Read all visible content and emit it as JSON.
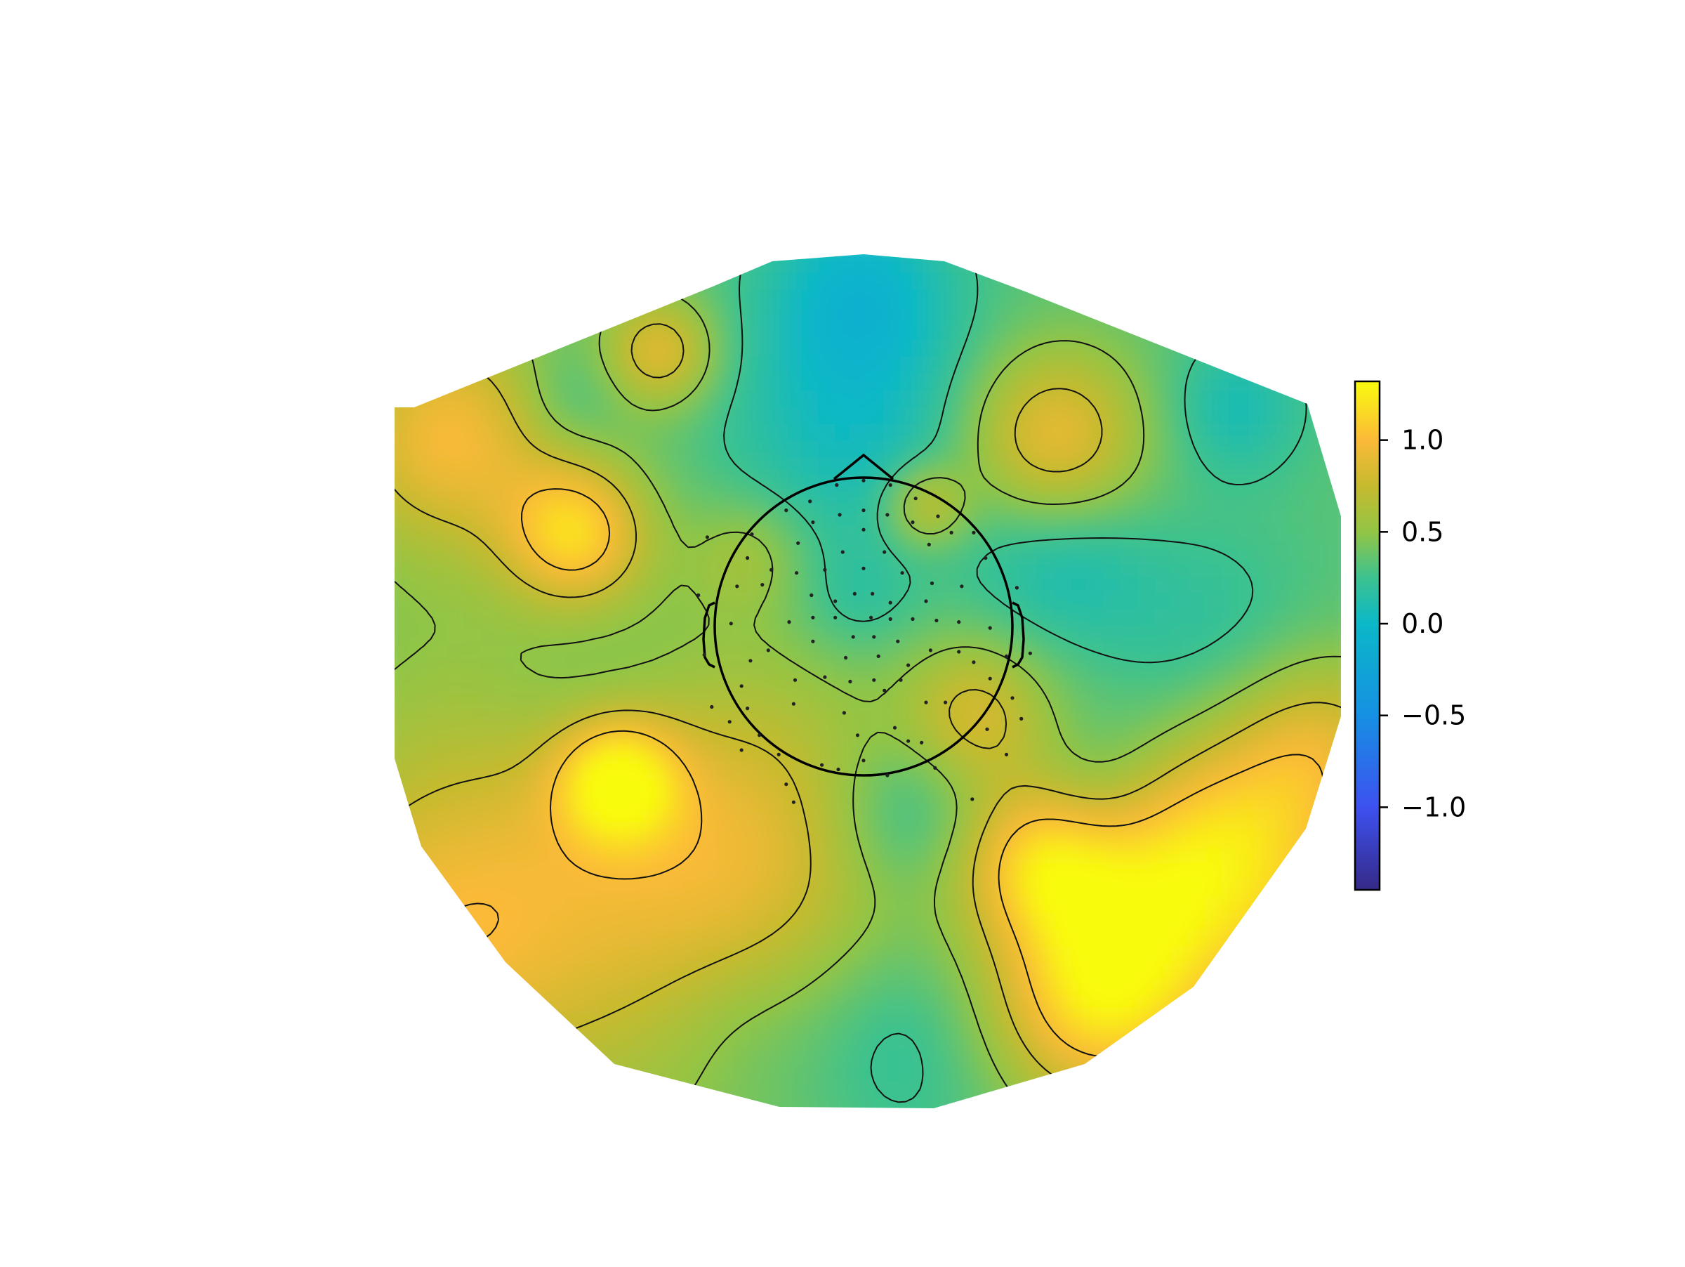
{
  "chart_data": {
    "type": "heatmap",
    "subtype": "topomap",
    "title": "",
    "xlabel": "",
    "ylabel": "",
    "colormap": {
      "name": "parula-like",
      "range": [
        -1.45,
        1.32
      ],
      "stops": [
        {
          "value": -1.45,
          "color": "#352a87"
        },
        {
          "value": -1.0,
          "color": "#3d51f0"
        },
        {
          "value": -0.5,
          "color": "#1690e3"
        },
        {
          "value": 0.0,
          "color": "#0bb8c8"
        },
        {
          "value": 0.25,
          "color": "#3cc28f"
        },
        {
          "value": 0.5,
          "color": "#92c545"
        },
        {
          "value": 0.75,
          "color": "#c6ba2e"
        },
        {
          "value": 1.0,
          "color": "#fbba38"
        },
        {
          "value": 1.32,
          "color": "#f9fb0e"
        }
      ]
    },
    "colorbar": {
      "ticks": [
        1.0,
        0.5,
        0.0,
        -0.5,
        -1.0
      ],
      "tick_labels": [
        "1.0",
        "0.5",
        "0.0",
        "−0.5",
        "−1.0"
      ]
    },
    "contour_levels": [
      0.25,
      0.5,
      0.75,
      1.0
    ],
    "head_outline": true,
    "sensors_shown": true,
    "sensors": [
      [
        0.0,
        0.98
      ],
      [
        -0.18,
        0.95
      ],
      [
        0.18,
        0.95
      ],
      [
        0.35,
        0.86
      ],
      [
        -0.36,
        0.84
      ],
      [
        -0.52,
        0.78
      ],
      [
        0.5,
        0.74
      ],
      [
        0.74,
        0.63
      ],
      [
        0.0,
        0.78
      ],
      [
        -0.16,
        0.75
      ],
      [
        0.16,
        0.75
      ],
      [
        -0.34,
        0.7
      ],
      [
        0.33,
        0.7
      ],
      [
        -0.75,
        0.62
      ],
      [
        -0.44,
        0.56
      ],
      [
        0.44,
        0.55
      ],
      [
        0.59,
        0.63
      ],
      [
        -0.78,
        0.46
      ],
      [
        0.82,
        0.46
      ],
      [
        -1.05,
        0.6
      ],
      [
        -0.62,
        0.38
      ],
      [
        -0.14,
        0.5
      ],
      [
        0.14,
        0.5
      ],
      [
        0.0,
        0.65
      ],
      [
        -0.45,
        0.36
      ],
      [
        -0.26,
        0.38
      ],
      [
        0.0,
        0.39
      ],
      [
        0.26,
        0.36
      ],
      [
        0.46,
        0.29
      ],
      [
        -0.85,
        0.27
      ],
      [
        -0.68,
        0.28
      ],
      [
        1.03,
        0.26
      ],
      [
        0.66,
        0.27
      ],
      [
        -1.11,
        0.21
      ],
      [
        -0.35,
        0.21
      ],
      [
        -0.06,
        0.22
      ],
      [
        0.06,
        0.22
      ],
      [
        0.18,
        0.16
      ],
      [
        -0.19,
        0.17
      ],
      [
        0.42,
        0.17
      ],
      [
        -0.89,
        0.02
      ],
      [
        -0.5,
        0.03
      ],
      [
        -0.34,
        0.06
      ],
      [
        -0.19,
        0.06
      ],
      [
        0.05,
        0.06
      ],
      [
        0.18,
        0.05
      ],
      [
        0.33,
        0.05
      ],
      [
        0.49,
        0.04
      ],
      [
        0.64,
        0.03
      ],
      [
        0.85,
        -0.01
      ],
      [
        -0.34,
        -0.1
      ],
      [
        -0.64,
        -0.16
      ],
      [
        -0.07,
        -0.07
      ],
      [
        0.07,
        -0.07
      ],
      [
        -0.12,
        -0.21
      ],
      [
        0.1,
        -0.2
      ],
      [
        0.23,
        -0.1
      ],
      [
        0.45,
        -0.16
      ],
      [
        0.64,
        -0.17
      ],
      [
        -1.07,
        -0.19
      ],
      [
        -0.76,
        -0.23
      ],
      [
        -0.46,
        -0.36
      ],
      [
        -0.82,
        -0.4
      ],
      [
        -0.26,
        -0.34
      ],
      [
        -0.09,
        -0.37
      ],
      [
        0.07,
        -0.36
      ],
      [
        0.25,
        -0.36
      ],
      [
        0.3,
        -0.26
      ],
      [
        0.42,
        -0.51
      ],
      [
        0.74,
        -0.24
      ],
      [
        0.85,
        -0.35
      ],
      [
        1.0,
        -0.48
      ],
      [
        1.12,
        -0.18
      ],
      [
        0.96,
        -0.2
      ],
      [
        -0.9,
        -0.64
      ],
      [
        -0.78,
        -0.55
      ],
      [
        -0.47,
        -0.52
      ],
      [
        -0.13,
        -0.58
      ],
      [
        0.21,
        -0.68
      ],
      [
        0.39,
        -0.78
      ],
      [
        -0.7,
        -0.73
      ],
      [
        -0.04,
        -0.73
      ],
      [
        0.3,
        -0.77
      ],
      [
        0.55,
        -0.51
      ],
      [
        0.14,
        -0.43
      ],
      [
        -1.02,
        -0.54
      ],
      [
        0.0,
        -0.9
      ],
      [
        -0.28,
        -0.93
      ],
      [
        1.06,
        -0.62
      ],
      [
        0.83,
        -0.69
      ],
      [
        -0.57,
        -0.86
      ],
      [
        -0.52,
        -1.06
      ],
      [
        -0.17,
        -0.96
      ],
      [
        -0.47,
        -1.18
      ],
      [
        0.73,
        -1.16
      ],
      [
        0.16,
        -1.0
      ],
      [
        0.96,
        -0.86
      ],
      [
        0.48,
        -0.95
      ],
      [
        -0.82,
        -0.83
      ]
    ]
  }
}
